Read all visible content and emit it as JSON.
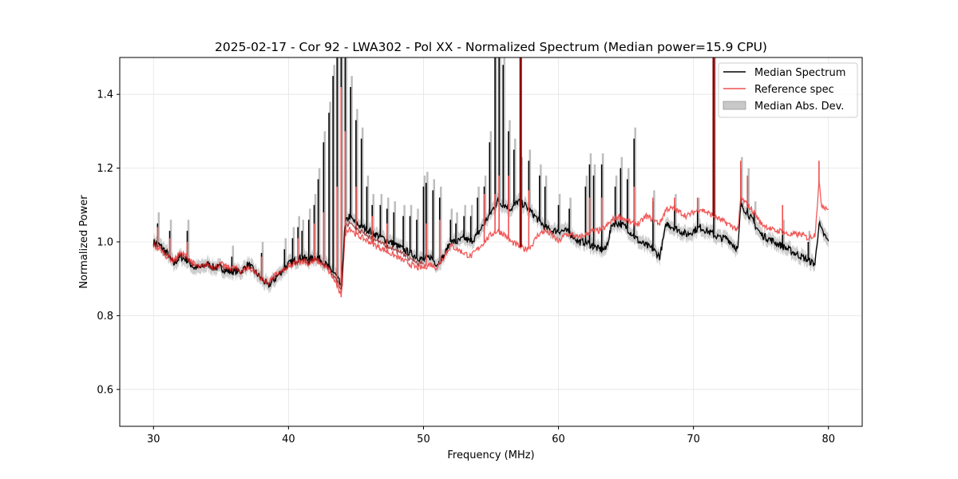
{
  "chart_data": {
    "type": "line",
    "title": "2025-02-17 - Cor 92 - LWA302 - Pol XX - Normalized Spectrum (Median power=15.9 CPU)",
    "xlabel": "Frequency (MHz)",
    "ylabel": "Normalized Power",
    "xlim": [
      27.5,
      82.5
    ],
    "ylim": [
      0.5,
      1.5
    ],
    "xticks": [
      30,
      40,
      50,
      60,
      70,
      80
    ],
    "yticks": [
      0.6,
      0.8,
      1.0,
      1.2,
      1.4
    ],
    "xtick_labels": [
      "30",
      "40",
      "50",
      "60",
      "70",
      "80"
    ],
    "ytick_labels": [
      "0.6",
      "0.8",
      "1.0",
      "1.2",
      "1.4"
    ],
    "grid": true,
    "legend_position": "top-right",
    "colors": {
      "median": "#000000",
      "reference": "#f05050",
      "overlap": "#8b0000",
      "mad": "#bdbdbd",
      "grid": "#e4e4e4"
    },
    "series": [
      {
        "name": "Median Spectrum",
        "x": [
          30.0,
          30.5,
          31.0,
          31.5,
          32.0,
          32.5,
          33.0,
          33.5,
          34.0,
          34.5,
          35.0,
          35.5,
          36.0,
          36.5,
          37.0,
          37.5,
          38.0,
          38.5,
          39.0,
          39.5,
          40.0,
          40.5,
          41.0,
          41.5,
          42.0,
          42.5,
          43.0,
          43.5,
          43.9,
          44.2,
          44.5,
          45.0,
          45.5,
          46.0,
          46.5,
          47.0,
          47.5,
          48.0,
          48.5,
          49.0,
          49.5,
          50.0,
          50.5,
          51.0,
          51.5,
          52.0,
          52.5,
          53.0,
          53.5,
          54.0,
          54.5,
          55.0,
          55.5,
          56.0,
          56.5,
          57.0,
          57.5,
          58.0,
          58.5,
          59.0,
          59.5,
          60.0,
          60.5,
          61.0,
          61.5,
          62.0,
          62.5,
          63.0,
          63.5,
          64.0,
          64.5,
          65.0,
          65.5,
          66.0,
          66.5,
          67.0,
          67.5,
          68.0,
          68.5,
          69.0,
          69.5,
          70.0,
          70.5,
          71.0,
          71.5,
          72.0,
          72.5,
          73.0,
          73.3,
          73.5,
          74.0,
          74.5,
          75.0,
          75.5,
          76.0,
          76.5,
          77.0,
          77.5,
          78.0,
          78.5,
          79.0,
          79.3,
          79.5,
          80.0
        ],
        "values": [
          1.0,
          0.99,
          0.97,
          0.94,
          0.96,
          0.95,
          0.93,
          0.93,
          0.94,
          0.93,
          0.93,
          0.92,
          0.92,
          0.92,
          0.94,
          0.92,
          0.9,
          0.88,
          0.9,
          0.92,
          0.94,
          0.95,
          0.96,
          0.95,
          0.96,
          0.95,
          0.93,
          0.91,
          0.88,
          1.05,
          1.07,
          1.05,
          1.04,
          1.03,
          1.02,
          1.01,
          1.0,
          0.99,
          0.98,
          0.97,
          0.96,
          0.95,
          0.96,
          0.94,
          0.96,
          1.0,
          1.0,
          1.01,
          1.0,
          1.02,
          1.05,
          1.08,
          1.11,
          1.1,
          1.09,
          1.11,
          1.1,
          1.08,
          1.06,
          1.04,
          1.03,
          1.03,
          1.03,
          1.02,
          1.0,
          1.0,
          0.99,
          0.98,
          0.98,
          1.05,
          1.05,
          1.04,
          1.02,
          1.0,
          0.99,
          0.98,
          0.96,
          1.05,
          1.04,
          1.03,
          1.02,
          1.03,
          1.04,
          1.03,
          1.02,
          1.01,
          1.01,
          0.99,
          0.98,
          1.1,
          1.08,
          1.05,
          1.02,
          1.01,
          1.0,
          0.99,
          0.98,
          0.97,
          0.96,
          0.95,
          0.94,
          1.05,
          1.03,
          1.0
        ],
        "peaks": [
          [
            30.3,
            1.05
          ],
          [
            31.2,
            1.03
          ],
          [
            32.5,
            1.03
          ],
          [
            35.8,
            0.96
          ],
          [
            38.0,
            0.97
          ],
          [
            39.7,
            0.98
          ],
          [
            40.3,
            1.01
          ],
          [
            40.7,
            1.04
          ],
          [
            41.0,
            1.03
          ],
          [
            41.5,
            1.06
          ],
          [
            41.9,
            1.1
          ],
          [
            42.2,
            1.17
          ],
          [
            42.6,
            1.27
          ],
          [
            43.0,
            1.35
          ],
          [
            43.3,
            1.45
          ],
          [
            43.6,
            1.5
          ],
          [
            43.9,
            1.5
          ],
          [
            44.2,
            1.5
          ],
          [
            44.6,
            1.42
          ],
          [
            45.0,
            1.33
          ],
          [
            45.4,
            1.28
          ],
          [
            45.8,
            1.15
          ],
          [
            46.2,
            1.1
          ],
          [
            46.8,
            1.1
          ],
          [
            47.3,
            1.09
          ],
          [
            47.8,
            1.08
          ],
          [
            48.5,
            1.07
          ],
          [
            49.0,
            1.07
          ],
          [
            49.5,
            1.06
          ],
          [
            50.0,
            1.15
          ],
          [
            50.2,
            1.16
          ],
          [
            50.7,
            1.14
          ],
          [
            51.2,
            1.12
          ],
          [
            52.0,
            1.06
          ],
          [
            52.4,
            1.05
          ],
          [
            53.0,
            1.07
          ],
          [
            53.5,
            1.07
          ],
          [
            54.0,
            1.12
          ],
          [
            54.5,
            1.15
          ],
          [
            54.9,
            1.27
          ],
          [
            55.3,
            1.5
          ],
          [
            55.6,
            1.5
          ],
          [
            55.9,
            1.48
          ],
          [
            56.3,
            1.3
          ],
          [
            56.7,
            1.25
          ],
          [
            57.2,
            1.2
          ],
          [
            57.8,
            1.22
          ],
          [
            58.6,
            1.18
          ],
          [
            59.0,
            1.15
          ],
          [
            60.0,
            1.1
          ],
          [
            60.8,
            1.09
          ],
          [
            62.0,
            1.15
          ],
          [
            62.3,
            1.21
          ],
          [
            62.6,
            1.18
          ],
          [
            63.2,
            1.21
          ],
          [
            64.2,
            1.15
          ],
          [
            64.6,
            1.2
          ],
          [
            65.1,
            1.17
          ],
          [
            65.6,
            1.28
          ],
          [
            67.0,
            1.11
          ],
          [
            68.6,
            1.1
          ],
          [
            70.3,
            1.09
          ],
          [
            71.5,
            1.5
          ],
          [
            73.5,
            1.2
          ],
          [
            74.0,
            1.17
          ],
          [
            74.5,
            1.08
          ],
          [
            76.6,
            1.03
          ],
          [
            78.5,
            1.0
          ]
        ]
      },
      {
        "name": "Reference spec",
        "x": [
          30.0,
          30.5,
          31.0,
          31.5,
          32.0,
          32.5,
          33.0,
          33.5,
          34.0,
          34.5,
          35.0,
          35.5,
          36.0,
          36.5,
          37.0,
          37.5,
          38.0,
          38.5,
          39.0,
          39.5,
          40.0,
          40.5,
          41.0,
          41.5,
          42.0,
          42.5,
          43.0,
          43.5,
          43.9,
          44.2,
          44.5,
          45.0,
          45.5,
          46.0,
          46.5,
          47.0,
          47.5,
          48.0,
          48.5,
          49.0,
          49.5,
          50.0,
          50.5,
          51.0,
          51.5,
          52.0,
          52.5,
          53.0,
          53.5,
          54.0,
          54.5,
          55.0,
          55.5,
          56.0,
          56.5,
          57.0,
          57.5,
          58.0,
          58.5,
          59.0,
          59.5,
          60.0,
          60.5,
          61.0,
          61.5,
          62.0,
          62.5,
          63.0,
          63.5,
          64.0,
          64.5,
          65.0,
          65.5,
          66.0,
          66.5,
          67.0,
          67.5,
          68.0,
          68.5,
          69.0,
          69.5,
          70.0,
          70.5,
          71.0,
          71.5,
          72.0,
          72.5,
          73.0,
          73.3,
          73.5,
          74.0,
          74.5,
          75.0,
          75.5,
          76.0,
          76.5,
          77.0,
          77.5,
          78.0,
          78.5,
          79.0,
          79.3,
          79.5,
          80.0
        ],
        "values": [
          0.99,
          0.98,
          0.96,
          0.95,
          0.97,
          0.96,
          0.94,
          0.93,
          0.94,
          0.93,
          0.94,
          0.93,
          0.93,
          0.92,
          0.93,
          0.92,
          0.9,
          0.89,
          0.91,
          0.92,
          0.93,
          0.94,
          0.95,
          0.94,
          0.95,
          0.94,
          0.92,
          0.89,
          0.85,
          1.02,
          1.04,
          1.02,
          1.01,
          1.0,
          0.99,
          0.98,
          0.97,
          0.96,
          0.95,
          0.94,
          0.93,
          0.93,
          0.94,
          0.93,
          0.96,
          0.99,
          0.98,
          0.97,
          0.96,
          0.98,
          1.0,
          1.02,
          1.03,
          1.02,
          1.0,
          0.99,
          0.98,
          0.99,
          1.02,
          1.03,
          1.02,
          1.0,
          1.02,
          1.02,
          1.01,
          1.02,
          1.03,
          1.03,
          1.04,
          1.06,
          1.07,
          1.06,
          1.05,
          1.05,
          1.07,
          1.06,
          1.05,
          1.09,
          1.09,
          1.08,
          1.07,
          1.08,
          1.09,
          1.08,
          1.07,
          1.06,
          1.05,
          1.04,
          1.03,
          1.12,
          1.1,
          1.08,
          1.05,
          1.04,
          1.03,
          1.03,
          1.02,
          1.02,
          1.02,
          1.01,
          1.02,
          1.16,
          1.1,
          1.09
        ],
        "peaks": [
          [
            30.3,
            1.04
          ],
          [
            31.2,
            1.01
          ],
          [
            32.5,
            1.0
          ],
          [
            38.0,
            0.96
          ],
          [
            40.7,
            1.01
          ],
          [
            41.9,
            1.05
          ],
          [
            42.6,
            1.08
          ],
          [
            43.6,
            1.15
          ],
          [
            43.9,
            1.42
          ],
          [
            44.2,
            1.3
          ],
          [
            45.0,
            1.15
          ],
          [
            46.2,
            1.07
          ],
          [
            47.3,
            1.05
          ],
          [
            50.2,
            1.05
          ],
          [
            51.2,
            1.06
          ],
          [
            54.5,
            1.13
          ],
          [
            55.3,
            1.13
          ],
          [
            55.6,
            1.18
          ],
          [
            56.3,
            1.18
          ],
          [
            57.2,
            1.5
          ],
          [
            57.8,
            1.14
          ],
          [
            62.3,
            1.12
          ],
          [
            63.2,
            1.12
          ],
          [
            65.6,
            1.15
          ],
          [
            67.0,
            1.12
          ],
          [
            68.6,
            1.12
          ],
          [
            70.3,
            1.12
          ],
          [
            71.5,
            1.5
          ],
          [
            73.5,
            1.22
          ],
          [
            74.0,
            1.18
          ],
          [
            76.6,
            1.1
          ],
          [
            79.3,
            1.22
          ]
        ]
      }
    ],
    "band": {
      "name": "Median Abs. Dev.",
      "half_width": 0.018
    }
  }
}
